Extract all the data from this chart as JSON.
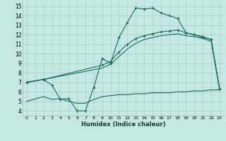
{
  "xlabel": "Humidex (Indice chaleur)",
  "bg_color": "#c5e8e2",
  "grid_color": "#a8ccc8",
  "line_color": "#1a6b5e",
  "xlim": [
    -0.5,
    23.5
  ],
  "ylim": [
    3.5,
    15.5
  ],
  "xticks": [
    0,
    1,
    2,
    3,
    4,
    5,
    6,
    7,
    8,
    9,
    10,
    11,
    12,
    13,
    14,
    15,
    16,
    17,
    18,
    19,
    20,
    21,
    22,
    23
  ],
  "yticks": [
    4,
    5,
    6,
    7,
    8,
    9,
    10,
    11,
    12,
    13,
    14,
    15
  ],
  "series1_x": [
    0,
    2,
    3,
    4,
    5,
    6,
    7,
    8,
    9,
    10,
    11,
    12,
    13,
    14,
    15,
    16,
    17,
    18,
    19,
    20,
    21,
    22,
    23
  ],
  "series1_y": [
    7.0,
    7.3,
    6.7,
    5.2,
    5.3,
    4.0,
    4.0,
    6.5,
    9.5,
    9.0,
    11.7,
    13.3,
    14.8,
    14.7,
    14.8,
    14.3,
    14.0,
    13.7,
    12.2,
    12.0,
    11.7,
    11.5,
    6.3
  ],
  "series2_x": [
    0,
    2,
    9,
    10,
    11,
    12,
    13,
    14,
    15,
    16,
    17,
    18,
    19,
    20,
    21,
    22,
    23
  ],
  "series2_y": [
    7.0,
    7.3,
    8.8,
    9.2,
    10.2,
    11.0,
    11.6,
    11.9,
    12.1,
    12.3,
    12.4,
    12.5,
    12.2,
    12.0,
    11.8,
    11.5,
    6.3
  ],
  "series3_x": [
    0,
    2,
    9,
    10,
    11,
    12,
    13,
    14,
    15,
    16,
    17,
    18,
    19,
    20,
    21,
    22,
    23
  ],
  "series3_y": [
    7.0,
    7.3,
    8.5,
    8.9,
    9.7,
    10.5,
    11.1,
    11.5,
    11.7,
    11.9,
    12.0,
    12.1,
    11.9,
    11.8,
    11.6,
    11.3,
    6.3
  ],
  "series4_x": [
    0,
    2,
    3,
    4,
    5,
    6,
    7,
    8,
    9,
    10,
    11,
    12,
    13,
    14,
    15,
    16,
    17,
    18,
    19,
    20,
    21,
    22,
    23
  ],
  "series4_y": [
    5.0,
    5.5,
    5.2,
    5.3,
    5.0,
    4.8,
    4.8,
    5.2,
    5.5,
    5.6,
    5.7,
    5.7,
    5.8,
    5.8,
    5.9,
    5.9,
    5.9,
    6.0,
    6.0,
    6.1,
    6.1,
    6.2,
    6.2
  ]
}
